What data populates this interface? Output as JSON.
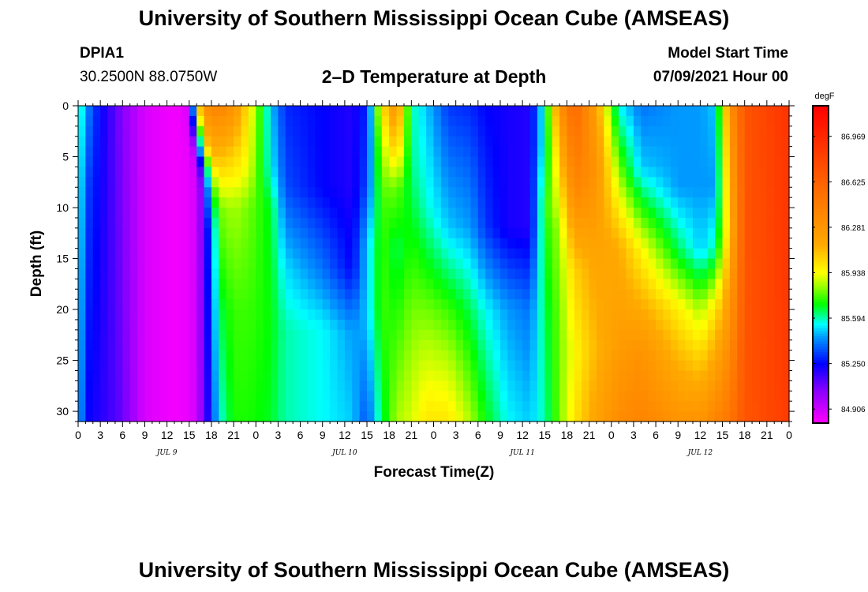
{
  "page": {
    "title_top": "University of Southern Mississippi Ocean Cube (AMSEAS)",
    "title_bottom": "University of Southern Mississippi Ocean Cube (AMSEAS)",
    "station": "DPIA1",
    "coords": "30.2500N  88.0750W",
    "plot_title": "2–D Temperature at Depth",
    "model_start_label": "Model Start Time",
    "model_start_value": "07/09/2021 Hour 00"
  },
  "chart_data": {
    "type": "heatmap",
    "title": "2–D Temperature at Depth",
    "xlabel": "Forecast Time(Z)",
    "ylabel": "Depth (ft)",
    "x_tick_labels": [
      "0",
      "3",
      "6",
      "9",
      "12",
      "15",
      "18",
      "21",
      "0",
      "3",
      "6",
      "9",
      "12",
      "15",
      "18",
      "21",
      "0",
      "3",
      "6",
      "9",
      "12",
      "15",
      "18",
      "21",
      "0",
      "3",
      "6",
      "9",
      "12",
      "15",
      "18",
      "21",
      "0"
    ],
    "x_range_hours": [
      0,
      96
    ],
    "day_labels": [
      {
        "text": "JUL 9",
        "hour": 12
      },
      {
        "text": "JUL 10",
        "hour": 36
      },
      {
        "text": "JUL 11",
        "hour": 60
      },
      {
        "text": "JUL 12",
        "hour": 84
      }
    ],
    "y_ticks": [
      0,
      5,
      10,
      15,
      20,
      25,
      30
    ],
    "y_range": [
      0,
      31
    ],
    "y_inverted": true,
    "colorbar": {
      "unit": "degF",
      "labels": [
        "86.969",
        "86.625",
        "86.281",
        "85.938",
        "85.594",
        "85.250",
        "84.906"
      ],
      "min": 84.8,
      "max": 87.2,
      "stops": [
        {
          "v": 84.8,
          "color": "#ff00ff"
        },
        {
          "v": 85.05,
          "color": "#8800ff"
        },
        {
          "v": 85.25,
          "color": "#0000ff"
        },
        {
          "v": 85.45,
          "color": "#0099ff"
        },
        {
          "v": 85.55,
          "color": "#00ffff"
        },
        {
          "v": 85.7,
          "color": "#00ff00"
        },
        {
          "v": 85.85,
          "color": "#aaff00"
        },
        {
          "v": 85.94,
          "color": "#ffff00"
        },
        {
          "v": 86.15,
          "color": "#ffaa00"
        },
        {
          "v": 86.6,
          "color": "#ff6600"
        },
        {
          "v": 87.2,
          "color": "#ff0000"
        }
      ]
    },
    "profiles": [
      {
        "hour": 0,
        "depths": [
          0,
          31
        ],
        "temps": [
          85.65,
          85.55
        ]
      },
      {
        "hour": 1,
        "depths": [
          0,
          8,
          31
        ],
        "temps": [
          85.45,
          85.35,
          85.25
        ]
      },
      {
        "hour": 3,
        "depths": [
          0,
          31
        ],
        "temps": [
          85.25,
          85.2
        ]
      },
      {
        "hour": 6,
        "depths": [
          0,
          31
        ],
        "temps": [
          85.05,
          85.1
        ]
      },
      {
        "hour": 9,
        "depths": [
          0,
          31
        ],
        "temps": [
          84.88,
          84.88
        ]
      },
      {
        "hour": 13,
        "depths": [
          0,
          31
        ],
        "temps": [
          84.82,
          84.82
        ]
      },
      {
        "hour": 15,
        "depths": [
          0,
          4,
          31
        ],
        "temps": [
          84.88,
          84.85,
          84.85
        ]
      },
      {
        "hour": 16,
        "depths": [
          0,
          2,
          4,
          6,
          31
        ],
        "temps": [
          86.0,
          85.55,
          85.05,
          84.9,
          84.9
        ]
      },
      {
        "hour": 17,
        "depths": [
          0,
          4,
          6,
          8,
          31
        ],
        "temps": [
          86.3,
          86.0,
          85.4,
          85.15,
          85.1
        ]
      },
      {
        "hour": 18,
        "depths": [
          0,
          5,
          8,
          12,
          31
        ],
        "temps": [
          86.4,
          86.1,
          85.7,
          85.4,
          85.3
        ]
      },
      {
        "hour": 19,
        "depths": [
          0,
          6,
          10,
          20,
          31
        ],
        "temps": [
          86.4,
          86.05,
          85.8,
          85.65,
          85.55
        ]
      },
      {
        "hour": 21,
        "depths": [
          0,
          5,
          10,
          20,
          31
        ],
        "temps": [
          86.3,
          86.05,
          85.85,
          85.75,
          85.72
        ]
      },
      {
        "hour": 23,
        "depths": [
          0,
          6,
          10,
          20,
          31
        ],
        "temps": [
          86.0,
          85.92,
          85.8,
          85.75,
          85.72
        ]
      },
      {
        "hour": 26,
        "depths": [
          0,
          6,
          10,
          20,
          31
        ],
        "temps": [
          85.5,
          85.55,
          85.68,
          85.7,
          85.68
        ]
      },
      {
        "hour": 28,
        "depths": [
          0,
          8,
          16,
          22,
          31
        ],
        "temps": [
          85.3,
          85.35,
          85.52,
          85.6,
          85.6
        ]
      },
      {
        "hour": 33,
        "depths": [
          0,
          8,
          16,
          22,
          31
        ],
        "temps": [
          85.25,
          85.25,
          85.4,
          85.55,
          85.55
        ]
      },
      {
        "hour": 37,
        "depths": [
          0,
          8,
          16,
          22,
          31
        ],
        "temps": [
          85.2,
          85.2,
          85.25,
          85.45,
          85.5
        ]
      },
      {
        "hour": 39,
        "depths": [
          0,
          8,
          14,
          20,
          31
        ],
        "temps": [
          85.3,
          85.35,
          85.5,
          85.5,
          85.35
        ]
      },
      {
        "hour": 41,
        "depths": [
          0,
          4,
          10,
          20,
          31
        ],
        "temps": [
          86.0,
          85.85,
          85.75,
          85.75,
          85.65
        ]
      },
      {
        "hour": 43,
        "depths": [
          0,
          4,
          8,
          14,
          20,
          31
        ],
        "temps": [
          86.3,
          86.1,
          85.8,
          85.65,
          85.72,
          85.85
        ]
      },
      {
        "hour": 45,
        "depths": [
          0,
          6,
          12,
          20,
          31
        ],
        "temps": [
          85.6,
          85.62,
          85.7,
          85.8,
          85.9
        ]
      },
      {
        "hour": 47,
        "depths": [
          0,
          10,
          20,
          31
        ],
        "temps": [
          85.5,
          85.58,
          85.8,
          86.0
        ]
      },
      {
        "hour": 50,
        "depths": [
          0,
          12,
          20,
          31
        ],
        "temps": [
          85.32,
          85.5,
          85.75,
          86.0
        ]
      },
      {
        "hour": 53,
        "depths": [
          0,
          12,
          20,
          31
        ],
        "temps": [
          85.3,
          85.45,
          85.65,
          85.85
        ]
      },
      {
        "hour": 55,
        "depths": [
          0,
          12,
          20,
          31
        ],
        "temps": [
          85.25,
          85.32,
          85.55,
          85.7
        ]
      },
      {
        "hour": 58,
        "depths": [
          0,
          12,
          20,
          31
        ],
        "temps": [
          85.22,
          85.22,
          85.45,
          85.55
        ]
      },
      {
        "hour": 61,
        "depths": [
          0,
          12,
          20,
          31
        ],
        "temps": [
          85.2,
          85.2,
          85.4,
          85.5
        ]
      },
      {
        "hour": 63,
        "depths": [
          0,
          4,
          10,
          20,
          31
        ],
        "temps": [
          85.6,
          85.6,
          85.72,
          85.65,
          85.6
        ]
      },
      {
        "hour": 65,
        "depths": [
          0,
          6,
          12,
          20,
          31
        ],
        "temps": [
          86.3,
          86.05,
          85.85,
          85.8,
          85.8
        ]
      },
      {
        "hour": 67,
        "depths": [
          0,
          8,
          16,
          24,
          31
        ],
        "temps": [
          86.6,
          86.4,
          86.05,
          85.95,
          86.0
        ]
      },
      {
        "hour": 70,
        "depths": [
          0,
          6,
          14,
          24,
          31
        ],
        "temps": [
          86.2,
          86.3,
          86.2,
          86.12,
          86.2
        ]
      },
      {
        "hour": 73,
        "depths": [
          0,
          6,
          14,
          24,
          31
        ],
        "temps": [
          85.55,
          85.8,
          86.15,
          86.25,
          86.35
        ]
      },
      {
        "hour": 76,
        "depths": [
          0,
          6,
          14,
          24,
          31
        ],
        "temps": [
          85.4,
          85.5,
          85.95,
          86.3,
          86.4
        ]
      },
      {
        "hour": 81,
        "depths": [
          0,
          8,
          14,
          20,
          31
        ],
        "temps": [
          85.45,
          85.45,
          85.65,
          85.98,
          86.3
        ]
      },
      {
        "hour": 84,
        "depths": [
          0,
          8,
          14,
          20,
          31
        ],
        "temps": [
          85.45,
          85.45,
          85.5,
          85.85,
          86.3
        ]
      },
      {
        "hour": 86,
        "depths": [
          0,
          8,
          14,
          20,
          31
        ],
        "temps": [
          85.5,
          85.45,
          85.6,
          86.0,
          86.4
        ]
      },
      {
        "hour": 88,
        "depths": [
          0,
          5,
          12,
          31
        ],
        "temps": [
          86.3,
          86.2,
          86.1,
          86.5
        ]
      },
      {
        "hour": 90,
        "depths": [
          0,
          31
        ],
        "temps": [
          86.7,
          86.7
        ]
      },
      {
        "hour": 96,
        "depths": [
          0,
          31
        ],
        "temps": [
          86.9,
          86.85
        ]
      }
    ]
  }
}
